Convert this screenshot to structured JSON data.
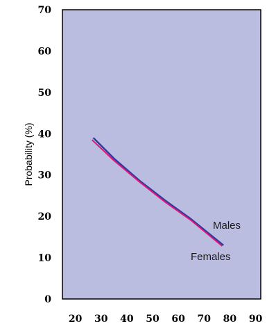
{
  "chart_data": {
    "type": "line",
    "title": "",
    "xlabel": "",
    "ylabel": "Probability (%)",
    "xlim": [
      15,
      92
    ],
    "ylim": [
      0,
      70
    ],
    "x_ticks": [
      20,
      30,
      40,
      50,
      60,
      70,
      80,
      90
    ],
    "y_ticks": [
      0,
      10,
      20,
      30,
      40,
      50,
      60,
      70
    ],
    "grid": false,
    "legend": "inline labels near line ends",
    "series": [
      {
        "name": "Males",
        "color": "#2e3b9e",
        "x": [
          27,
          35,
          45,
          55,
          65,
          77.5
        ],
        "y": [
          39,
          34,
          28.6,
          23.8,
          19.3,
          13
        ]
      },
      {
        "name": "Females",
        "color": "#e0167a",
        "x": [
          26.5,
          35,
          45,
          55,
          65,
          77
        ],
        "y": [
          38.5,
          33.5,
          28.3,
          23.4,
          19,
          12.8
        ]
      }
    ],
    "colors": {
      "plot_background": "#bbbde0",
      "axis": "#000000"
    }
  }
}
